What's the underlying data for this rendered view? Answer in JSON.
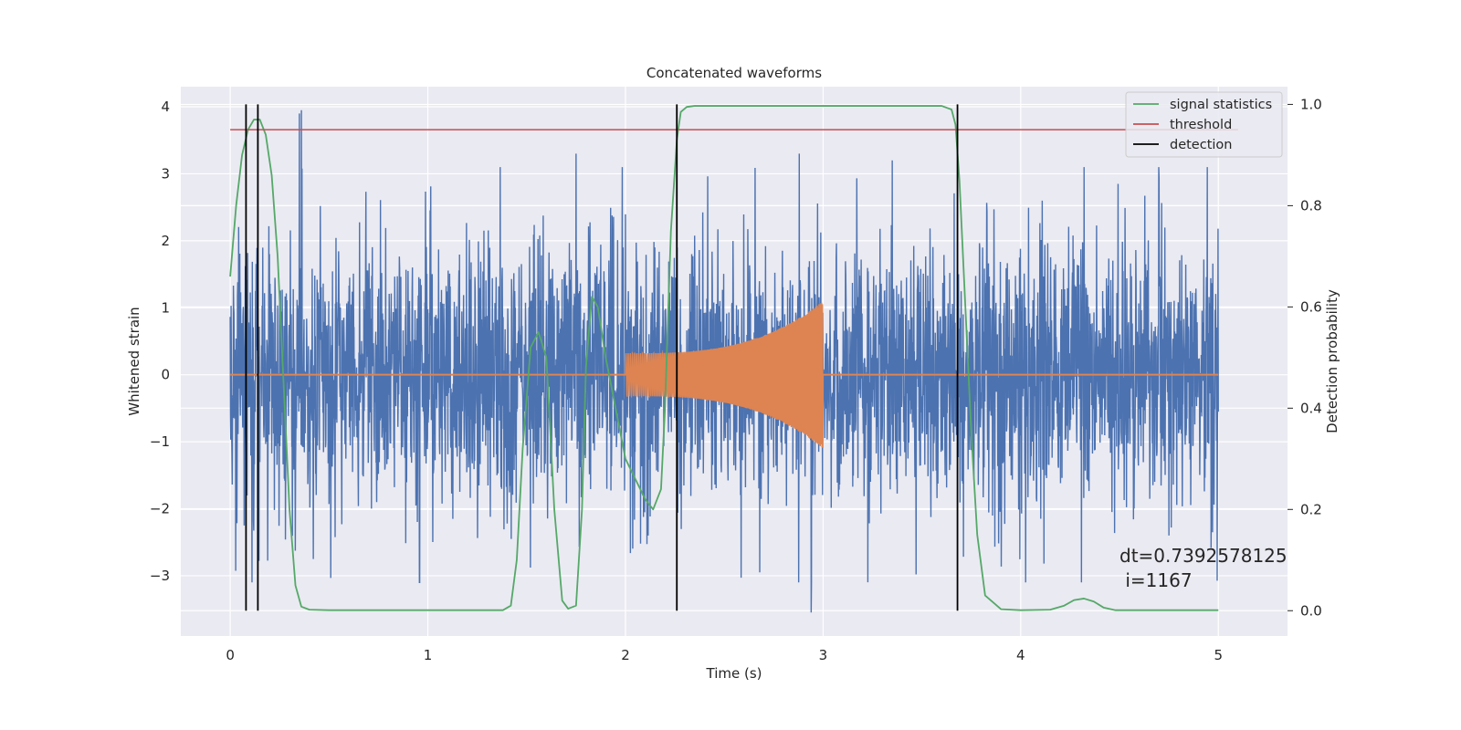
{
  "chart_data": {
    "type": "line",
    "title": "Concatenated waveforms",
    "xlabel": "Time (s)",
    "ylabel": "Whitened strain",
    "ylabel_right": "Detection probability",
    "xlim": [
      -0.25,
      5.35
    ],
    "ylim": [
      -3.9,
      4.3
    ],
    "ylim_right": [
      -0.05,
      1.035
    ],
    "xticks": [
      0,
      1,
      2,
      3,
      4,
      5
    ],
    "xtick_labels": [
      "0",
      "1",
      "2",
      "3",
      "4",
      "5"
    ],
    "yticks": [
      -3,
      -2,
      -1,
      0,
      1,
      2,
      3,
      4
    ],
    "ytick_labels": [
      "−3",
      "−2",
      "−1",
      "0",
      "1",
      "2",
      "3",
      "4"
    ],
    "yticks_right": [
      0.0,
      0.2,
      0.4,
      0.6,
      0.8,
      1.0
    ],
    "ytick_labels_right": [
      "0.0",
      "0.2",
      "0.4",
      "0.6",
      "0.8",
      "1.0"
    ],
    "grid": true,
    "legend_position": "upper right",
    "annotation": {
      "line1": "dt=0.7392578125",
      "line2": " i=1167"
    },
    "series": [
      {
        "name": "",
        "axis": "left",
        "color": "#4c72b0",
        "kind": "noise",
        "x_range": [
          0,
          5
        ],
        "amplitude_typical": 1.5,
        "amplitude_peak": 3.95,
        "peaks": [
          {
            "x": 0.36,
            "y": 3.95
          },
          {
            "x": 0.35,
            "y": 3.9
          },
          {
            "x": 1.75,
            "y": 3.3
          },
          {
            "x": 2.88,
            "y": 3.3
          },
          {
            "x": 3.35,
            "y": 3.2
          },
          {
            "x": 2.94,
            "y": -3.55
          },
          {
            "x": 0.42,
            "y": -2.75
          },
          {
            "x": 2.68,
            "y": -2.95
          },
          {
            "x": 4.75,
            "y": -2.4
          },
          {
            "x": 4.97,
            "y": -2.35
          }
        ]
      },
      {
        "name": "",
        "axis": "left",
        "color": "#dd8452",
        "kind": "chirp",
        "x_range": [
          2.0,
          3.0
        ],
        "amplitude_start": 0.32,
        "amplitude_end": 1.1,
        "baseline": 0
      },
      {
        "name": "signal statistics",
        "axis": "right",
        "color": "#55a868",
        "x": [
          0.0,
          0.03,
          0.06,
          0.09,
          0.12,
          0.15,
          0.18,
          0.21,
          0.24,
          0.27,
          0.3,
          0.33,
          0.36,
          0.4,
          0.5,
          1.0,
          1.38,
          1.42,
          1.45,
          1.48,
          1.52,
          1.56,
          1.6,
          1.64,
          1.68,
          1.71,
          1.75,
          1.78,
          1.8,
          1.83,
          1.86,
          1.9,
          1.95,
          2.0,
          2.05,
          2.1,
          2.14,
          2.18,
          2.2,
          2.23,
          2.26,
          2.28,
          2.31,
          2.35,
          2.45,
          3.0,
          3.6,
          3.65,
          3.67,
          3.69,
          3.72,
          3.75,
          3.78,
          3.82,
          3.9,
          4.0,
          4.15,
          4.22,
          4.27,
          4.32,
          4.37,
          4.42,
          4.48,
          4.6,
          5.0
        ],
        "y": [
          0.66,
          0.8,
          0.9,
          0.95,
          0.97,
          0.97,
          0.94,
          0.86,
          0.7,
          0.45,
          0.2,
          0.05,
          0.008,
          0.002,
          0.001,
          0.001,
          0.001,
          0.01,
          0.1,
          0.32,
          0.52,
          0.55,
          0.5,
          0.2,
          0.02,
          0.004,
          0.01,
          0.2,
          0.48,
          0.62,
          0.6,
          0.5,
          0.4,
          0.3,
          0.26,
          0.22,
          0.2,
          0.24,
          0.4,
          0.75,
          0.93,
          0.985,
          0.995,
          0.997,
          0.997,
          0.997,
          0.997,
          0.99,
          0.96,
          0.85,
          0.6,
          0.35,
          0.15,
          0.03,
          0.003,
          0.001,
          0.002,
          0.01,
          0.021,
          0.024,
          0.018,
          0.006,
          0.001,
          0.001,
          0.001
        ]
      },
      {
        "name": "threshold",
        "axis": "right",
        "color": "#c44e52",
        "x": [
          0,
          5.1
        ],
        "y": [
          0.95,
          0.95
        ]
      },
      {
        "name": "detection",
        "axis": "right",
        "color": "#000000",
        "kind": "vlines",
        "x": [
          0.08,
          0.14,
          2.26,
          3.68
        ],
        "y_range": [
          0,
          1.0
        ]
      }
    ]
  }
}
